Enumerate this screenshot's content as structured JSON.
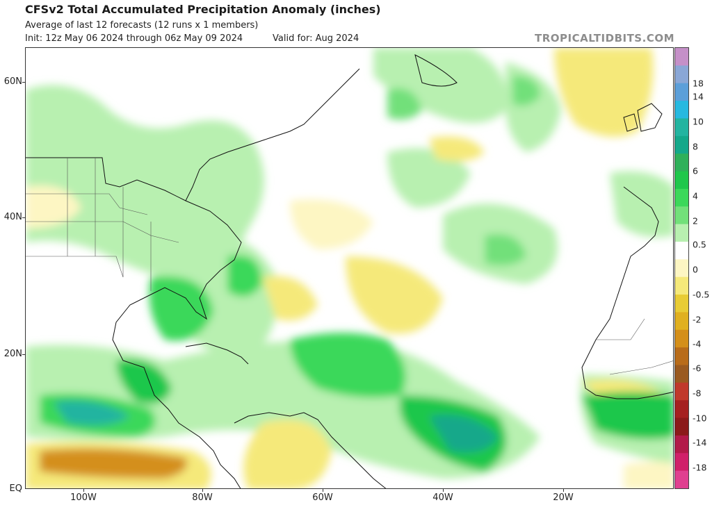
{
  "header": {
    "title": "CFSv2 Total Accumulated Precipitation Anomaly (inches)",
    "subtitle": "Average of last 12 forecasts (12 runs x 1 members)",
    "init": "Init: 12z May 06 2024 through 06z May 09 2024",
    "valid": "Valid for: Aug 2024",
    "brand": "TROPICALTIDBITS.COM"
  },
  "map": {
    "lat_labels": [
      "60N",
      "40N",
      "20N",
      "EQ"
    ],
    "lon_labels": [
      "100W",
      "80W",
      "60W",
      "40W",
      "20W"
    ]
  },
  "colorbar": {
    "labels": [
      "18",
      "14",
      "10",
      "8",
      "6",
      "4",
      "2",
      "0.5",
      "0",
      "-0.5",
      "-2",
      "-4",
      "-6",
      "-8",
      "-10",
      "-14",
      "-18"
    ],
    "colors": [
      "#c590c8",
      "#8aa7d6",
      "#5c9fd9",
      "#27b9e0",
      "#23b4a0",
      "#14a88a",
      "#2fb05a",
      "#1fc74b",
      "#3bd85a",
      "#72e07a",
      "#b8f0b0",
      "#ffffff",
      "#fdf6c3",
      "#f5e97a",
      "#e8cc35",
      "#e0b020",
      "#d48f1a",
      "#b86c1a",
      "#9a5a20",
      "#c0392b",
      "#a52020",
      "#8b1a1a",
      "#b21a4a",
      "#d0206a",
      "#e04090"
    ]
  }
}
